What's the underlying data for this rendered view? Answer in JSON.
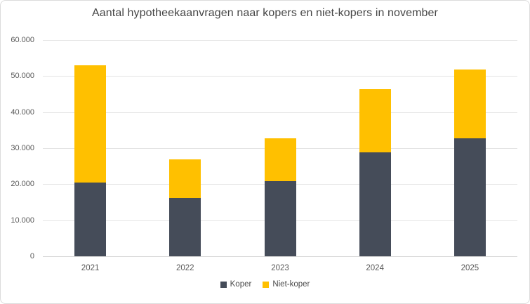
{
  "card": {
    "background": "#ffffff",
    "border_color": "#dcdcdc"
  },
  "chart_data": {
    "type": "bar",
    "stacked": true,
    "title": "Aantal hypotheekaanvragen naar kopers en niet-kopers in november",
    "categories": [
      "2021",
      "2022",
      "2023",
      "2024",
      "2025"
    ],
    "series": [
      {
        "name": "Koper",
        "color": "#454C59",
        "values": [
          20500,
          16200,
          20900,
          28800,
          32700
        ]
      },
      {
        "name": "Niet-koper",
        "color": "#FFC000",
        "values": [
          32500,
          10600,
          11900,
          17500,
          19100
        ]
      }
    ],
    "totals": [
      53000,
      26800,
      32800,
      46300,
      51800
    ],
    "xlabel": "",
    "ylabel": "",
    "ylim": [
      0,
      60000
    ],
    "ytick_step": 10000,
    "ytick_labels": [
      "0",
      "10.000",
      "20.000",
      "30.000",
      "40.000",
      "50.000",
      "60.000"
    ],
    "grid": true,
    "legend_position": "bottom"
  },
  "style": {
    "title_color": "#454545",
    "tick_color": "#595959",
    "gridline_color": "#e4e4e4",
    "axis_line_color": "#d7d7d7"
  }
}
